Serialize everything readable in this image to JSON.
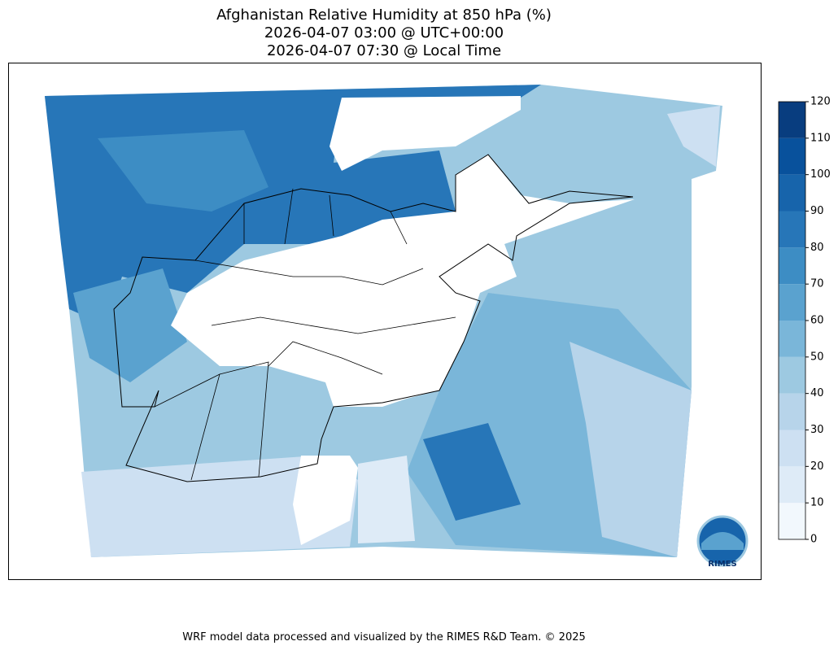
{
  "title": [
    "Afghanistan Relative Humidity at 850 hPa (%)",
    "2026-04-07 03:00 @ UTC+00:00",
    "2026-04-07 07:30 @ Local Time"
  ],
  "colorbar": {
    "ticks": [
      0,
      10,
      20,
      30,
      40,
      50,
      60,
      70,
      80,
      90,
      100,
      110,
      120
    ],
    "colors": [
      "#f2f8fd",
      "#deebf7",
      "#cde0f2",
      "#b7d4ea",
      "#9dc9e1",
      "#7ab6d9",
      "#5aa2cf",
      "#3d8dc4",
      "#2776b8",
      "#1764ab",
      "#08519c",
      "#083d7f"
    ]
  },
  "logo": "RIMES",
  "footer": "WRF model data processed and visualized by the RIMES R&D Team. © 2025"
}
